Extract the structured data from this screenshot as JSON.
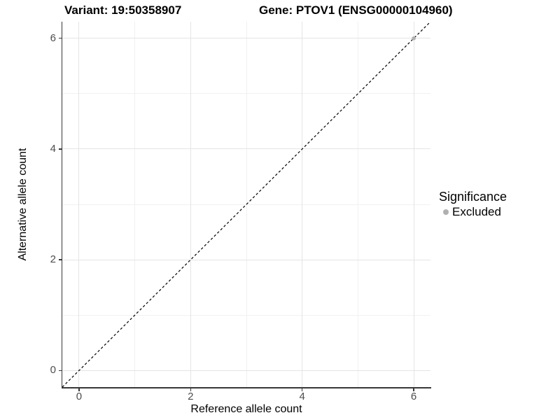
{
  "chart_data": {
    "type": "scatter",
    "titles": {
      "left": "Variant: 19:50358907",
      "right": "Gene: PTOV1 (ENSG00000104960)"
    },
    "xlabel": "Reference allele count",
    "ylabel": "Alternative allele count",
    "xlim": [
      -0.3,
      6.3
    ],
    "ylim": [
      -0.3,
      6.3
    ],
    "x_ticks": [
      0,
      2,
      4,
      6
    ],
    "y_ticks": [
      0,
      2,
      4,
      6
    ],
    "x_minor_ticks": [
      1,
      3,
      5
    ],
    "y_minor_ticks": [
      1,
      3,
      5
    ],
    "grid": true,
    "background": "#ffffff",
    "identity_line": {
      "slope": 1,
      "intercept": 0,
      "style": "dashed",
      "color": "#000000"
    },
    "legend": {
      "title": "Significance",
      "position": "right",
      "items": [
        {
          "label": "Excluded",
          "color": "#b0b0b0"
        }
      ]
    },
    "series": [
      {
        "name": "Excluded",
        "color": "#b0b0b0",
        "points": [
          {
            "x": 6,
            "y": 6
          }
        ]
      }
    ]
  }
}
